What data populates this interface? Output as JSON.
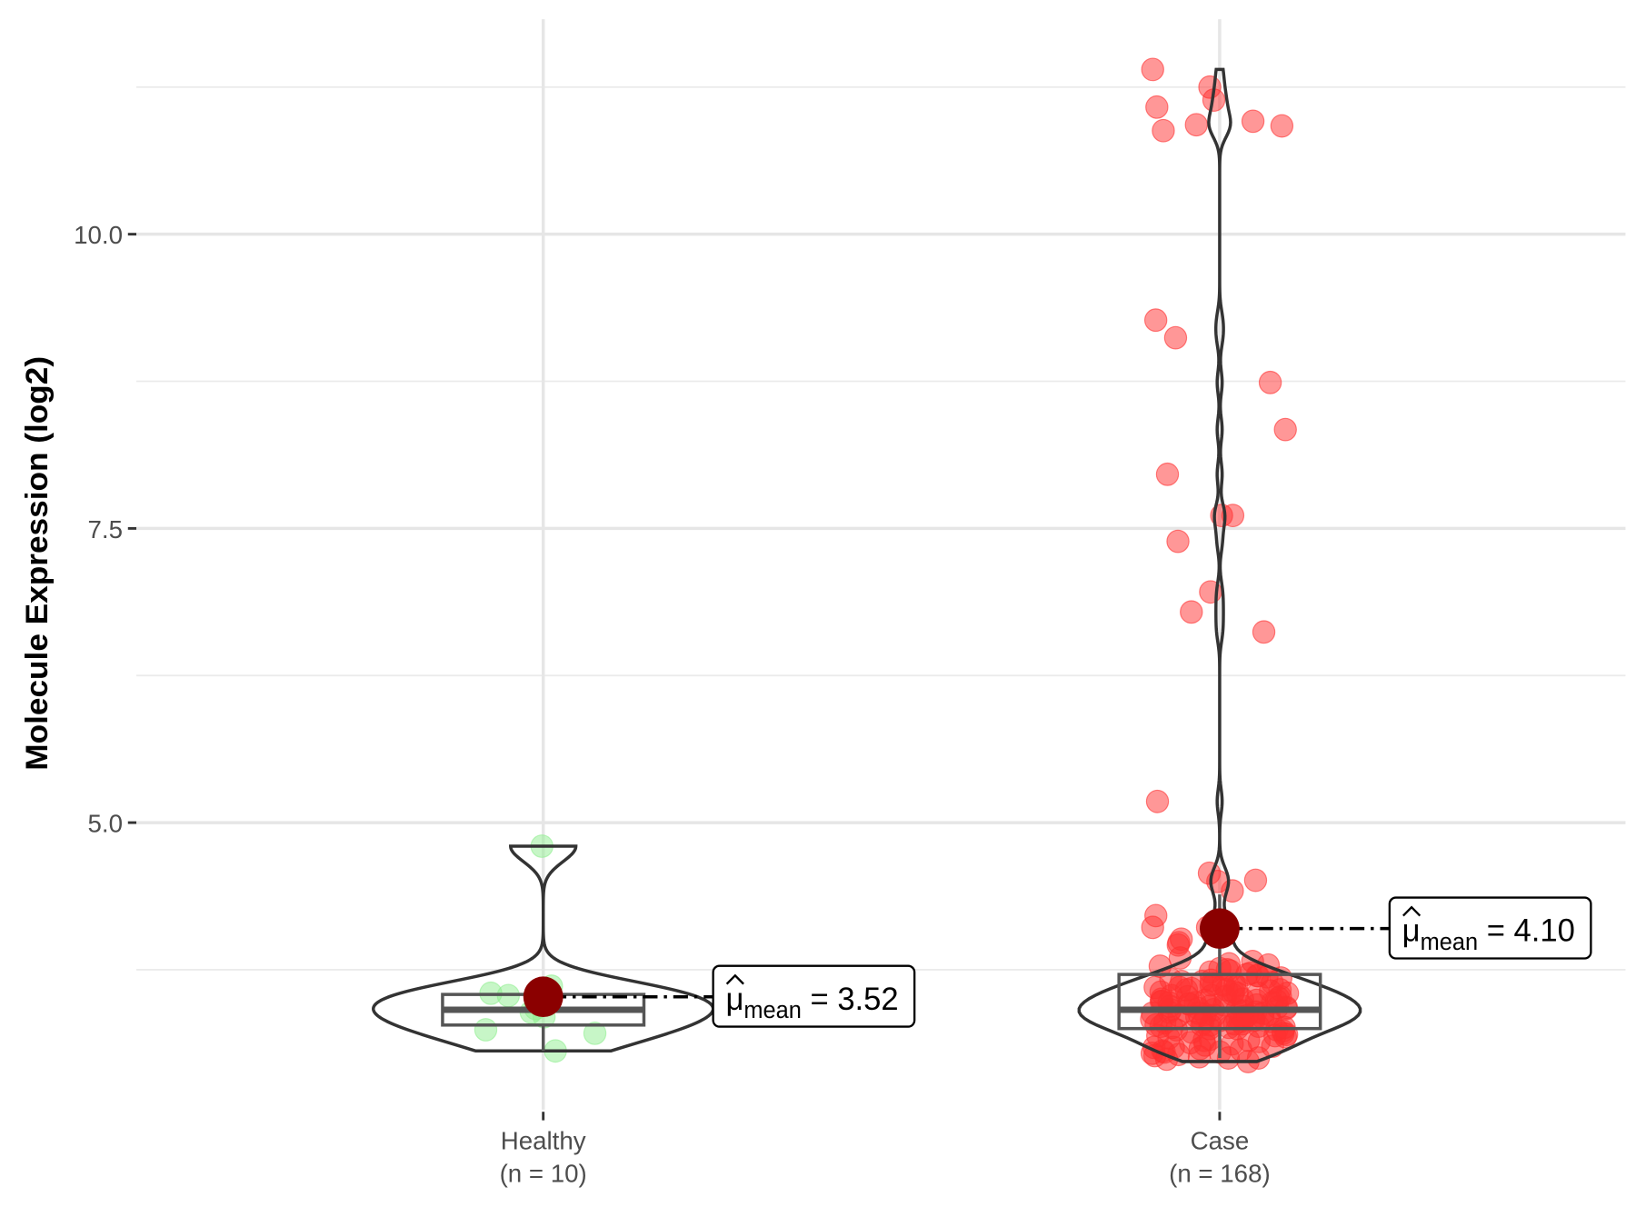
{
  "chart_data": {
    "type": "violin-box-scatter",
    "title": "",
    "xlabel": "",
    "ylabel": "Molecule Expression (log2)",
    "ylim": [
      2.4,
      11.6
    ],
    "yticks": [
      5.0,
      7.5,
      10.0
    ],
    "ytick_labels": [
      "5.0",
      "7.5",
      "10.0"
    ],
    "grid": true,
    "groups": [
      {
        "name": "Healthy",
        "n_label": "(n = 10)",
        "color": "#90EE90",
        "mean": 3.52,
        "mean_label_symbol": "μ",
        "mean_label_sub": "mean",
        "mean_label_value": "= 3.52",
        "box": {
          "min": 3.06,
          "q1": 3.28,
          "median": 3.41,
          "q3": 3.54,
          "max": 3.61
        },
        "points": [
          4.8,
          3.61,
          3.55,
          3.53,
          3.42,
          3.35,
          3.24,
          3.21,
          3.06,
          3.39
        ]
      },
      {
        "name": "Case",
        "n_label": "(n = 168)",
        "color": "#FF3030",
        "mean": 4.1,
        "mean_label_symbol": "μ",
        "mean_label_sub": "mean",
        "mean_label_value": "= 4.10",
        "box": {
          "min": 3.0,
          "q1": 3.25,
          "median": 3.41,
          "q3": 3.71,
          "max": 4.39
        },
        "points": [
          11.4,
          11.25,
          11.14,
          11.08,
          10.96,
          10.93,
          10.92,
          10.88,
          9.27,
          9.12,
          8.74,
          8.34,
          7.96,
          7.61,
          7.61,
          7.39,
          6.96,
          6.79,
          6.62,
          5.18,
          4.5,
          4.57,
          4.51,
          4.42,
          4.11,
          4.11,
          4.21,
          3.98,
          3.96,
          4.01,
          3.85,
          3.82,
          3.8,
          3.79,
          3.78,
          3.76,
          3.75,
          3.74,
          3.73,
          3.72,
          3.71,
          3.7,
          3.7,
          3.69,
          3.68,
          3.67,
          3.66,
          3.65,
          3.65,
          3.64,
          3.63,
          3.62,
          3.62,
          3.61,
          3.6,
          3.6,
          3.59,
          3.58,
          3.58,
          3.57,
          3.56,
          3.56,
          3.55,
          3.55,
          3.54,
          3.53,
          3.53,
          3.52,
          3.52,
          3.51,
          3.5,
          3.5,
          3.49,
          3.49,
          3.48,
          3.48,
          3.47,
          3.47,
          3.46,
          3.46,
          3.45,
          3.45,
          3.44,
          3.44,
          3.43,
          3.43,
          3.42,
          3.42,
          3.41,
          3.41,
          3.4,
          3.4,
          3.39,
          3.39,
          3.38,
          3.38,
          3.37,
          3.37,
          3.36,
          3.36,
          3.35,
          3.35,
          3.34,
          3.34,
          3.33,
          3.33,
          3.32,
          3.32,
          3.31,
          3.31,
          3.3,
          3.3,
          3.29,
          3.29,
          3.28,
          3.28,
          3.27,
          3.27,
          3.26,
          3.26,
          3.25,
          3.25,
          3.24,
          3.24,
          3.23,
          3.22,
          3.21,
          3.2,
          3.19,
          3.18,
          3.17,
          3.16,
          3.15,
          3.14,
          3.13,
          3.12,
          3.11,
          3.1,
          3.09,
          3.08,
          3.07,
          3.06,
          3.05,
          3.04,
          3.03,
          3.02,
          3.01,
          3.0,
          3.0,
          2.99,
          3.58,
          3.47,
          3.36,
          3.28,
          3.44,
          3.52,
          3.62,
          3.33,
          3.19,
          3.09,
          3.41,
          3.55,
          3.38,
          3.26,
          3.15,
          3.05,
          3.49,
          2.97
        ]
      }
    ]
  }
}
